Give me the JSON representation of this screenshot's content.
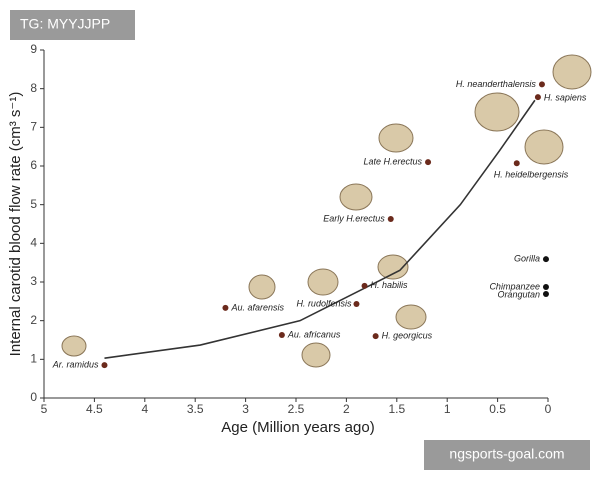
{
  "chart_data": {
    "type": "scatter",
    "xlabel": "Age  (Million years ago)",
    "ylabel": "Internal carotid blood flow rate  (cm³ s⁻¹)",
    "xlim": [
      5,
      0
    ],
    "xticks": [
      5,
      4.5,
      4,
      3.5,
      3,
      2.5,
      2,
      1.5,
      1,
      0.5,
      0
    ],
    "ylim": [
      0,
      9
    ],
    "yticks": [
      0,
      1,
      2,
      3,
      4,
      5,
      6,
      7,
      8,
      9
    ],
    "labels": [
      "Ar. ramidus",
      "Au. afarensis",
      "Au. africanus",
      "H. rudolfensis",
      "H. habilis",
      "H. georgicus",
      "Early H.erectus",
      "Late H.erectus",
      "H. heidelbergensis",
      "H. neanderthalensis",
      "H. sapiens",
      "Gorilla",
      "Chimpanzee",
      "Orangutan"
    ],
    "x": [
      4.4,
      3.2,
      2.64,
      1.9,
      1.82,
      1.71,
      1.56,
      1.19,
      0.31,
      0.06,
      0.1,
      0.02,
      0.02,
      0.02
    ],
    "y": [
      0.85,
      2.33,
      1.63,
      2.43,
      2.9,
      1.6,
      4.63,
      6.1,
      6.07,
      8.11,
      7.78,
      3.59,
      2.87,
      2.69
    ],
    "colors": [
      "#6b2a1c",
      "#6b2a1c",
      "#6b2a1c",
      "#6b2a1c",
      "#6b2a1c",
      "#6b2a1c",
      "#6b2a1c",
      "#6b2a1c",
      "#6b2a1c",
      "#6b2a1c",
      "#6b2a1c",
      "#111111",
      "#111111",
      "#111111"
    ],
    "trend_line": {
      "color": "#333333",
      "x": [
        4.4,
        3.45,
        2.46,
        1.47,
        0.87,
        0.48,
        0.13
      ],
      "y": [
        1.03,
        1.37,
        2.0,
        3.3,
        5.0,
        6.4,
        7.7
      ]
    }
  },
  "watermarks": {
    "top_left": "TG: MYYJJPP",
    "bottom_right": "ngsports-goal.com"
  }
}
